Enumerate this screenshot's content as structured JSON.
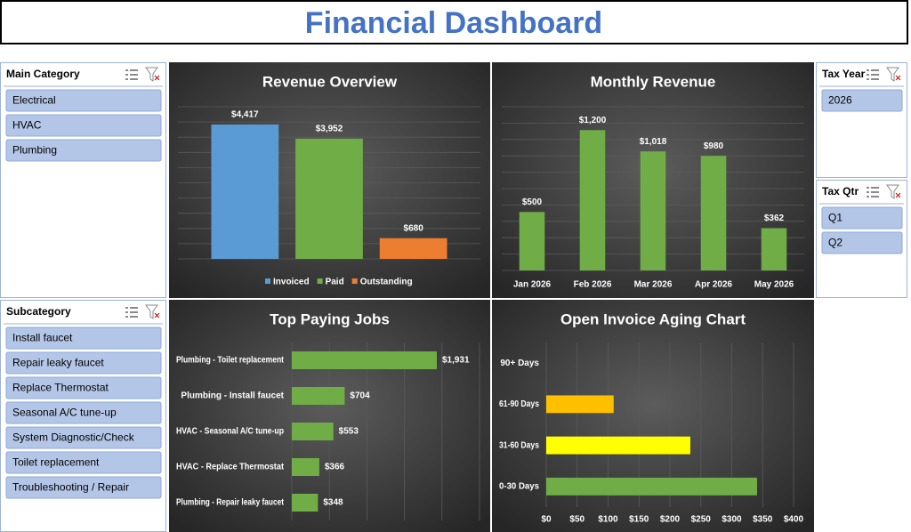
{
  "header": {
    "title": "Financial Dashboard"
  },
  "slicers": [
    {
      "title": "Main Category",
      "items": [
        "Electrical",
        "HVAC",
        "Plumbing"
      ]
    },
    {
      "title": "Subcategory",
      "items": [
        "Install faucet",
        "Repair leaky faucet",
        "Replace Thermostat",
        "Seasonal A/C tune-up",
        "System Diagnostic/Check",
        "Toilet replacement",
        "Troubleshooting / Repair"
      ]
    },
    {
      "title": "Tax Year",
      "items": [
        "2026"
      ]
    },
    {
      "title": "Tax Qtr",
      "items": [
        "Q1",
        "Q2"
      ]
    }
  ],
  "chart_data": [
    {
      "type": "bar",
      "title": "Revenue Overview",
      "categories": [
        "Invoiced",
        "Paid",
        "Outstanding"
      ],
      "values": [
        4417,
        3952,
        680
      ],
      "value_labels": [
        "$4,417",
        "$3,952",
        "$680"
      ],
      "colors": [
        "#5b9bd5",
        "#70ad47",
        "#ed7d31"
      ],
      "ylim": [
        0,
        5000
      ],
      "grid": true,
      "legend": "bottom"
    },
    {
      "type": "bar",
      "title": "Monthly Revenue",
      "categories": [
        "Jan 2026",
        "Feb 2026",
        "Mar 2026",
        "Apr 2026",
        "May 2026"
      ],
      "values": [
        500,
        1200,
        1018,
        980,
        362
      ],
      "value_labels": [
        "$500",
        "$1,200",
        "$1,018",
        "$980",
        "$362"
      ],
      "color": "#70ad47",
      "ylim": [
        0,
        1400
      ],
      "grid": true
    },
    {
      "type": "barh",
      "title": "Top Paying Jobs",
      "categories": [
        "Plumbing - Toilet replacement",
        "Plumbing - Install faucet",
        "HVAC - Seasonal A/C tune-up",
        "HVAC - Replace Thermostat",
        "Plumbing - Repair leaky faucet"
      ],
      "values": [
        1931,
        704,
        553,
        366,
        348
      ],
      "value_labels": [
        "$1,931",
        "$704",
        "$553",
        "$366",
        "$348"
      ],
      "color": "#70ad47",
      "xlim": [
        0,
        2500
      ],
      "grid": true
    },
    {
      "type": "barh",
      "title": "Open Invoice Aging Chart",
      "categories": [
        "90+ Days",
        "61-90 Days",
        "31-60 Days",
        "0-30 Days"
      ],
      "values": [
        null,
        109,
        233,
        341
      ],
      "colors": [
        "#70ad47",
        "#ffc000",
        "#ffff00",
        "#70ad47"
      ],
      "xlim": [
        0,
        400
      ],
      "xticks": [
        {
          "value": 0,
          "label": "$0"
        },
        {
          "value": 50,
          "label": "$50"
        },
        {
          "value": 100,
          "label": "$100"
        },
        {
          "value": 150,
          "label": "$150"
        },
        {
          "value": 200,
          "label": "$200"
        },
        {
          "value": 250,
          "label": "$250"
        },
        {
          "value": 300,
          "label": "$300"
        },
        {
          "value": 350,
          "label": "$350"
        },
        {
          "value": 400,
          "label": "$400"
        }
      ],
      "grid": true
    }
  ]
}
